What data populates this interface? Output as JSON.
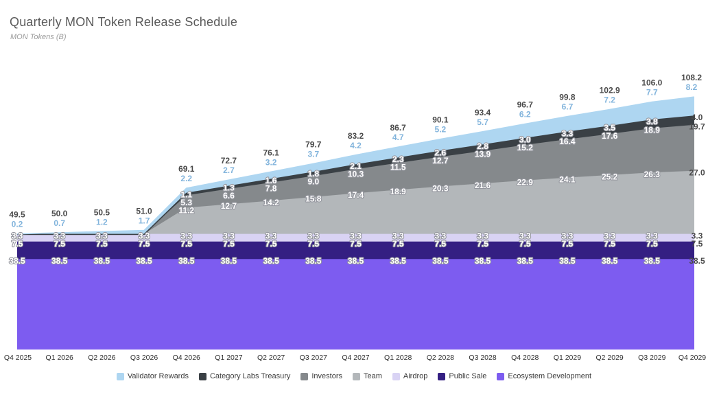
{
  "header": {
    "title": "Quarterly MON Token Release Schedule",
    "subtitle": "MON Tokens (B)"
  },
  "chart_data": {
    "type": "area",
    "stacked": true,
    "title": "Quarterly MON Token Release Schedule",
    "ylabel": "MON Tokens (B)",
    "xlabel": "",
    "grid": false,
    "legend_position": "bottom",
    "ylim": [
      0,
      120
    ],
    "background": "#ffffff",
    "x": [
      "Q4 2025",
      "Q1 2026",
      "Q2 2026",
      "Q3 2026",
      "Q4 2026",
      "Q1 2027",
      "Q2 2027",
      "Q3 2027",
      "Q4 2027",
      "Q1 2028",
      "Q2 2028",
      "Q3 2028",
      "Q4 2028",
      "Q1 2029",
      "Q2 2029",
      "Q3 2029",
      "Q4 2029"
    ],
    "series": [
      {
        "name": "Validator Rewards",
        "color": "#aed6f1",
        "values": [
          0.2,
          0.7,
          1.2,
          1.7,
          2.2,
          2.7,
          3.2,
          3.7,
          4.2,
          4.7,
          5.2,
          5.7,
          6.2,
          6.7,
          7.2,
          7.7,
          8.2
        ]
      },
      {
        "name": "Category Labs Treasury",
        "color": "#3a4045",
        "values": [
          0,
          0,
          0,
          0,
          1.1,
          1.3,
          1.6,
          1.8,
          2.1,
          2.3,
          2.6,
          2.8,
          3.0,
          3.3,
          3.5,
          3.8,
          4.0
        ]
      },
      {
        "name": "Investors",
        "color": "#85898c",
        "values": [
          0,
          0,
          0,
          0,
          5.3,
          6.6,
          7.8,
          9.0,
          10.3,
          11.5,
          12.7,
          13.9,
          15.2,
          16.4,
          17.6,
          18.9,
          19.7
        ]
      },
      {
        "name": "Team",
        "color": "#b3b7ba",
        "values": [
          0,
          0,
          0,
          0,
          11.2,
          12.7,
          14.2,
          15.8,
          17.4,
          18.9,
          20.3,
          21.6,
          22.9,
          24.1,
          25.2,
          26.3,
          27.0
        ]
      },
      {
        "name": "Airdrop",
        "color": "#d9d3f4",
        "values": [
          3.3,
          3.3,
          3.3,
          3.3,
          3.3,
          3.3,
          3.3,
          3.3,
          3.3,
          3.3,
          3.3,
          3.3,
          3.3,
          3.3,
          3.3,
          3.3,
          3.3
        ]
      },
      {
        "name": "Public Sale",
        "color": "#341f82",
        "values": [
          7.5,
          7.5,
          7.5,
          7.5,
          7.5,
          7.5,
          7.5,
          7.5,
          7.5,
          7.5,
          7.5,
          7.5,
          7.5,
          7.5,
          7.5,
          7.5,
          7.5
        ]
      },
      {
        "name": "Ecosystem Development",
        "color": "#7d5cf0",
        "values": [
          38.5,
          38.5,
          38.5,
          38.5,
          38.5,
          38.5,
          38.5,
          38.5,
          38.5,
          38.5,
          38.5,
          38.5,
          38.5,
          38.5,
          38.5,
          38.5,
          38.5
        ]
      }
    ],
    "totals": [
      49.5,
      50.0,
      50.5,
      51.0,
      69.1,
      72.7,
      76.1,
      79.7,
      83.2,
      86.7,
      90.1,
      93.4,
      96.7,
      99.8,
      102.9,
      106.0,
      108.2
    ],
    "colors": {
      "total_label": "#4a4a4a",
      "validator_label": "#82b4dc",
      "band_label_fill": "#ffffff",
      "band_label_halo": "#94969e",
      "axis_label": "#2f2f2f"
    }
  }
}
